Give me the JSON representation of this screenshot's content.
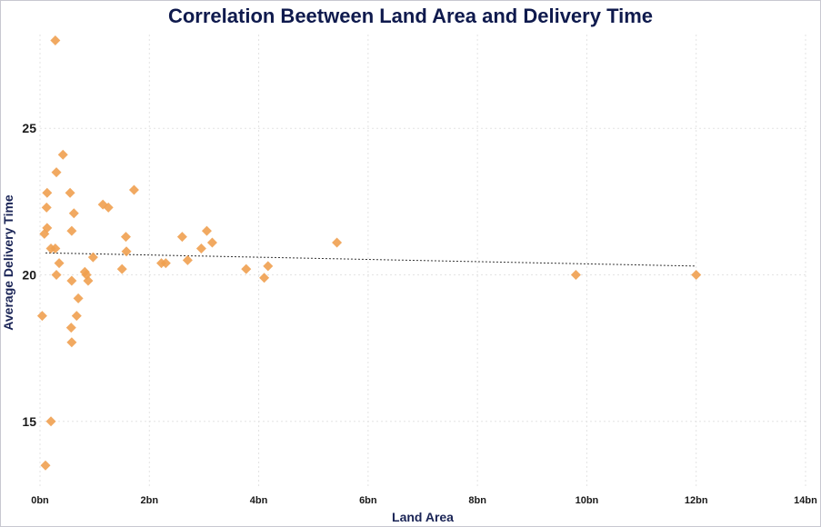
{
  "chart_data": {
    "type": "scatter",
    "title": "Correlation Beetween Land Area and Delivery Time",
    "xlabel": "Land Area",
    "ylabel": "Average Delivery Time",
    "xlim": [
      0,
      14
    ],
    "ylim": [
      12.7,
      28.2
    ],
    "x_ticks": [
      "0bn",
      "2bn",
      "4bn",
      "6bn",
      "8bn",
      "10bn",
      "12bn",
      "14bn"
    ],
    "y_ticks": [
      15,
      20,
      25
    ],
    "grid": true,
    "trendline": {
      "x": [
        0.1,
        12.0
      ],
      "y": [
        20.75,
        20.3
      ]
    },
    "colors": {
      "marker": "#f0a050",
      "trend": "#333333",
      "title": "#0f1a4d"
    },
    "series": [
      {
        "x": [
          0.28,
          0.42,
          0.3,
          0.13,
          0.55,
          0.12,
          0.62,
          0.13,
          0.08,
          0.58,
          0.2,
          0.28,
          0.35,
          0.3,
          0.58,
          0.7,
          0.67,
          0.57,
          0.58,
          0.04,
          0.2,
          0.1,
          1.72,
          1.15,
          1.25,
          1.57,
          1.58,
          0.97,
          0.82,
          0.85,
          0.88,
          1.5,
          2.6,
          3.05,
          3.15,
          2.95,
          2.22,
          2.3,
          2.7,
          3.77,
          4.1,
          4.17,
          5.43,
          9.8,
          12.0
        ],
        "y": [
          28.0,
          24.1,
          23.5,
          22.8,
          22.8,
          22.3,
          22.1,
          21.6,
          21.4,
          21.5,
          20.9,
          20.9,
          20.4,
          20.0,
          19.8,
          19.2,
          18.6,
          18.2,
          17.7,
          18.6,
          15.0,
          13.5,
          22.9,
          22.4,
          22.3,
          21.3,
          20.8,
          20.6,
          20.1,
          20.0,
          19.8,
          20.2,
          21.3,
          21.5,
          21.1,
          20.9,
          20.4,
          20.4,
          20.5,
          20.2,
          19.9,
          20.3,
          21.1,
          20.0,
          20.0
        ]
      }
    ]
  }
}
